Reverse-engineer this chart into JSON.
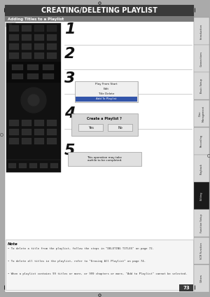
{
  "title": "CREATING/DELETING PLAYLIST",
  "subtitle": "Adding Titles to a Playlist",
  "title_bg": "#3a3a3a",
  "subtitle_bg": "#7a7a7a",
  "page_bg": "#ffffff",
  "outer_bg": "#aaaaaa",
  "page_number": "73",
  "sidebar_labels": [
    "Introduction",
    "Connections",
    "Basic Setup",
    "Disc\nManagement",
    "Recording",
    "Playback",
    "Editing",
    "Function Setup",
    "VCR Function",
    "Others"
  ],
  "sidebar_highlight_idx": 6,
  "step_numbers": [
    "1",
    "2",
    "3",
    "4",
    "5"
  ],
  "step3_menu": [
    "Play From Start",
    "Edit",
    "Title Delete",
    "Add To Playlist"
  ],
  "step4_menu_title": "Create a Playlist ?",
  "step4_options": [
    "Yes",
    "No"
  ],
  "step5_text": "This operation may take\nawhile to be completed.",
  "note_title": "Note",
  "note_bullets": [
    "To delete a title from the playlist, follow the steps in \"DELETING TITLES\" on page 72.",
    "To delete all titles in the playlist, refer to \"Erasing All Playlist\" on page 74.",
    "When a playlist contains 99 titles or more, or 999 chapters or more, \"Add to Playlist\" cannot be selected."
  ]
}
